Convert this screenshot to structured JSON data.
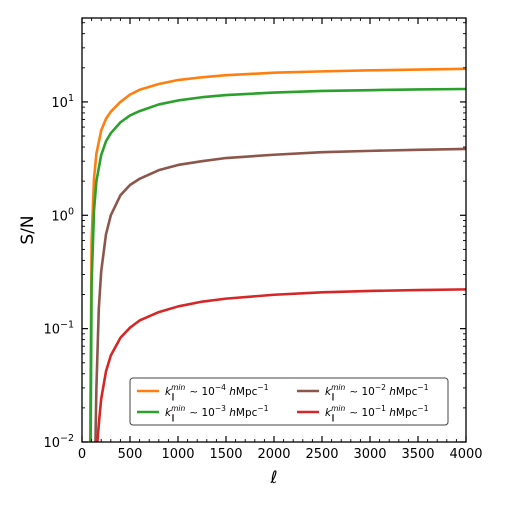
{
  "chart_data": {
    "type": "line",
    "xlabel": "ℓ",
    "ylabel": "S/N",
    "xlim": [
      0,
      4000
    ],
    "ylim": [
      0.01,
      55
    ],
    "yscale": "log",
    "x_ticks": [
      0,
      500,
      1000,
      1500,
      2000,
      2500,
      3000,
      3500,
      4000
    ],
    "x_tick_labels": [
      "0",
      "500",
      "1000",
      "1500",
      "2000",
      "2500",
      "3000",
      "3500",
      "4000"
    ],
    "y_ticks": [
      0.01,
      0.1,
      1,
      10
    ],
    "y_tick_labels": [
      {
        "base": "10",
        "exp": "−2"
      },
      {
        "base": "10",
        "exp": "−1"
      },
      {
        "base": "10",
        "exp": "0"
      },
      {
        "base": "10",
        "exp": "1"
      }
    ],
    "grid": false,
    "legend_position": "lower-right",
    "series": [
      {
        "name": "k∥min ∼ 10−4 hMpc−1",
        "legend": {
          "sup": "min",
          "sub": "∥",
          "value": "∼ 10",
          "exp": "−4",
          "unit_h": "h",
          "unit": "Mpc",
          "unit_exp": "−1"
        },
        "color": "#ff7f0e",
        "x": [
          85,
          100,
          125,
          150,
          200,
          250,
          300,
          400,
          500,
          600,
          800,
          1000,
          1250,
          1500,
          2000,
          2500,
          3000,
          3500,
          4000
        ],
        "y": [
          0.01,
          0.6,
          2.1,
          3.5,
          5.6,
          7.1,
          8.2,
          10.0,
          11.6,
          12.8,
          14.4,
          15.6,
          16.5,
          17.2,
          18.1,
          18.6,
          19.0,
          19.3,
          19.6
        ]
      },
      {
        "name": "k∥min ∼ 10−3 hMpc−1",
        "legend": {
          "sup": "min",
          "sub": "∥",
          "value": "∼ 10",
          "exp": "−3",
          "unit_h": "h",
          "unit": "Mpc",
          "unit_exp": "−1"
        },
        "color": "#2ca02c",
        "x": [
          90,
          100,
          125,
          150,
          200,
          250,
          300,
          400,
          500,
          600,
          800,
          1000,
          1250,
          1500,
          2000,
          2500,
          3000,
          3500,
          4000
        ],
        "y": [
          0.01,
          0.25,
          1.1,
          2.0,
          3.4,
          4.5,
          5.3,
          6.6,
          7.6,
          8.3,
          9.5,
          10.3,
          11.0,
          11.5,
          12.1,
          12.5,
          12.7,
          12.9,
          13.0
        ]
      },
      {
        "name": "k∥min ∼ 10−2 hMpc−1",
        "legend": {
          "sup": "min",
          "sub": "∥",
          "value": "∼ 10",
          "exp": "−2",
          "unit_h": "h",
          "unit": "Mpc",
          "unit_exp": "−1"
        },
        "color": "#8c564b",
        "x": [
          140,
          150,
          175,
          200,
          250,
          300,
          400,
          500,
          600,
          800,
          1000,
          1250,
          1500,
          2000,
          2500,
          3000,
          3500,
          4000
        ],
        "y": [
          0.01,
          0.03,
          0.15,
          0.32,
          0.68,
          1.0,
          1.5,
          1.85,
          2.1,
          2.5,
          2.78,
          3.0,
          3.2,
          3.42,
          3.6,
          3.7,
          3.78,
          3.85
        ]
      },
      {
        "name": "k∥min ∼ 10−1 hMpc−1",
        "legend": {
          "sup": "min",
          "sub": "∥",
          "value": "∼ 10",
          "exp": "−1",
          "unit_h": "h",
          "unit": "Mpc",
          "unit_exp": "−1"
        },
        "color": "#d62728",
        "x": [
          160,
          180,
          200,
          250,
          300,
          400,
          500,
          600,
          800,
          1000,
          1250,
          1500,
          2000,
          2500,
          3000,
          3500,
          4000
        ],
        "y": [
          0.01,
          0.016,
          0.024,
          0.042,
          0.058,
          0.083,
          0.102,
          0.118,
          0.14,
          0.157,
          0.173,
          0.184,
          0.199,
          0.209,
          0.215,
          0.219,
          0.222
        ]
      }
    ]
  }
}
